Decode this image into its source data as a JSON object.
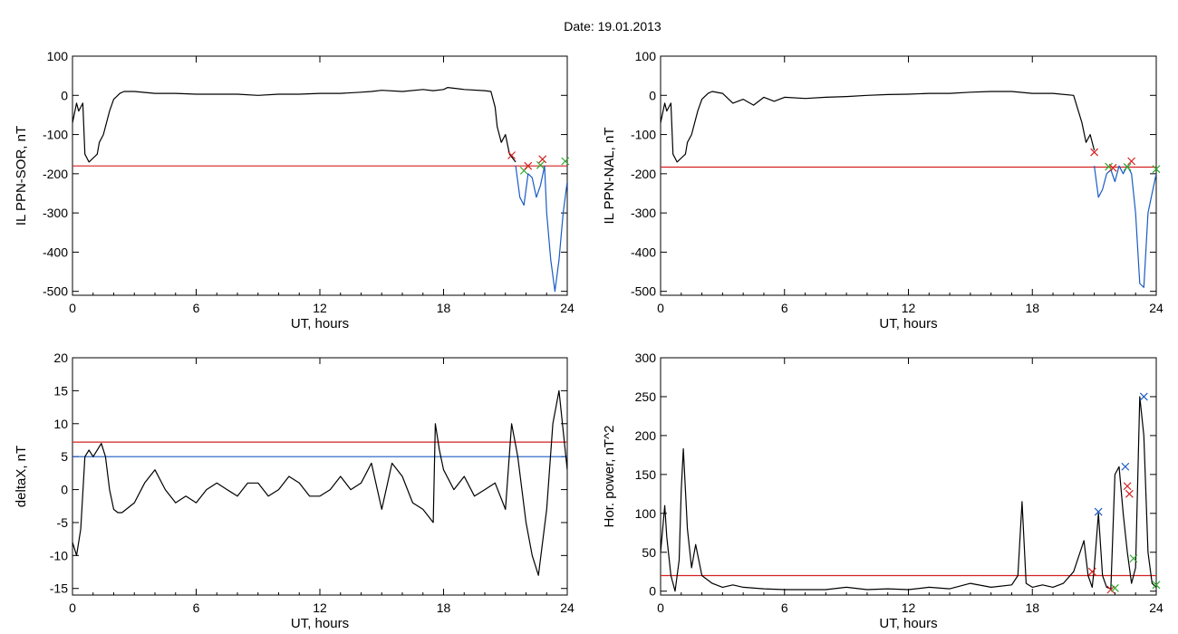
{
  "figure": {
    "title": "Date:  19.01.2013"
  },
  "chart_data": [
    {
      "type": "line",
      "xlabel": "UT, hours",
      "ylabel": "IL PPN-SOR, nT",
      "xlim": [
        0,
        24
      ],
      "ylim": [
        -510,
        100
      ],
      "xticks": [
        0,
        6,
        12,
        18,
        24
      ],
      "yticks": [
        100,
        0,
        -100,
        -200,
        -300,
        -400,
        -500
      ],
      "grid": false,
      "series": [
        {
          "color": "#000000",
          "x": [
            0,
            0.2,
            0.3,
            0.5,
            0.6,
            0.8,
            1.0,
            1.2,
            1.3,
            1.5,
            1.8,
            2.0,
            2.3,
            2.5,
            3.0,
            4.0,
            5.0,
            6.0,
            7.0,
            8.0,
            9.0,
            10.0,
            11.0,
            12.0,
            13.0,
            14.0,
            14.5,
            15.0,
            16.0,
            17.0,
            17.5,
            18.0,
            18.2,
            19.0,
            20.0,
            20.3,
            20.5,
            20.6,
            20.8,
            21.0,
            21.2,
            21.5
          ],
          "y": [
            -70,
            -20,
            -40,
            -20,
            -150,
            -170,
            -160,
            -150,
            -120,
            -100,
            -40,
            -10,
            5,
            10,
            10,
            5,
            5,
            3,
            3,
            3,
            0,
            3,
            3,
            5,
            5,
            8,
            10,
            13,
            10,
            15,
            12,
            15,
            20,
            15,
            12,
            10,
            -30,
            -80,
            -120,
            -100,
            -150,
            -170
          ]
        },
        {
          "color": "#1a5bc4",
          "x": [
            21.5,
            21.7,
            21.9,
            22.0,
            22.1,
            22.3,
            22.5,
            22.7,
            22.9,
            23.0,
            23.2,
            23.4,
            23.6,
            23.8,
            24.0
          ],
          "y": [
            -180,
            -260,
            -280,
            -240,
            -200,
            -210,
            -260,
            -230,
            -180,
            -300,
            -420,
            -500,
            -420,
            -300,
            -220
          ]
        }
      ],
      "hlines": [
        {
          "y": -180,
          "color": "#d42020"
        }
      ],
      "markers": [
        {
          "x": 21.3,
          "y": -153,
          "color": "#d42020"
        },
        {
          "x": 21.9,
          "y": -192,
          "color": "#2ea82e"
        },
        {
          "x": 22.1,
          "y": -180,
          "color": "#d42020"
        },
        {
          "x": 22.7,
          "y": -178,
          "color": "#2ea82e"
        },
        {
          "x": 22.8,
          "y": -163,
          "color": "#d42020"
        },
        {
          "x": 23.9,
          "y": -168,
          "color": "#2ea82e"
        }
      ]
    },
    {
      "type": "line",
      "xlabel": "UT, hours",
      "ylabel": "IL PPN-NAL, nT",
      "xlim": [
        0,
        24
      ],
      "ylim": [
        -510,
        100
      ],
      "xticks": [
        0,
        6,
        12,
        18,
        24
      ],
      "yticks": [
        100,
        0,
        -100,
        -200,
        -300,
        -400,
        -500
      ],
      "grid": false,
      "series": [
        {
          "color": "#000000",
          "x": [
            0,
            0.2,
            0.3,
            0.5,
            0.6,
            0.8,
            1.0,
            1.2,
            1.3,
            1.5,
            1.8,
            2.0,
            2.3,
            2.5,
            3.0,
            3.5,
            4.0,
            4.5,
            5.0,
            5.5,
            6.0,
            7.0,
            8.0,
            9.0,
            10.0,
            11.0,
            12.0,
            13.0,
            14.0,
            15.0,
            16.0,
            17.0,
            18.0,
            19.0,
            20.0,
            20.4,
            20.6,
            20.8,
            21.0
          ],
          "y": [
            -70,
            -20,
            -40,
            -20,
            -150,
            -170,
            -160,
            -150,
            -120,
            -100,
            -40,
            -10,
            5,
            10,
            5,
            -20,
            -10,
            -25,
            -5,
            -15,
            -5,
            -8,
            -5,
            -3,
            0,
            2,
            3,
            5,
            5,
            8,
            10,
            10,
            5,
            5,
            0,
            -70,
            -120,
            -100,
            -140
          ]
        },
        {
          "color": "#1a5bc4",
          "x": [
            21.0,
            21.2,
            21.4,
            21.6,
            21.8,
            22.0,
            22.2,
            22.4,
            22.6,
            22.8,
            23.0,
            23.2,
            23.4,
            23.6,
            23.8,
            24.0
          ],
          "y": [
            -180,
            -260,
            -240,
            -200,
            -190,
            -220,
            -180,
            -200,
            -180,
            -200,
            -300,
            -480,
            -490,
            -300,
            -250,
            -200
          ]
        }
      ],
      "hlines": [
        {
          "y": -183,
          "color": "#d42020"
        }
      ],
      "markers": [
        {
          "x": 21.0,
          "y": -145,
          "color": "#d42020"
        },
        {
          "x": 21.7,
          "y": -182,
          "color": "#2ea82e"
        },
        {
          "x": 21.9,
          "y": -185,
          "color": "#d42020"
        },
        {
          "x": 22.6,
          "y": -183,
          "color": "#2ea82e"
        },
        {
          "x": 22.8,
          "y": -168,
          "color": "#d42020"
        },
        {
          "x": 24.0,
          "y": -188,
          "color": "#2ea82e"
        }
      ]
    },
    {
      "type": "line",
      "xlabel": "UT, hours",
      "ylabel": "deltaX, nT",
      "xlim": [
        0,
        24
      ],
      "ylim": [
        -16,
        20
      ],
      "xticks": [
        0,
        6,
        12,
        18,
        24
      ],
      "yticks": [
        20,
        15,
        10,
        5,
        0,
        -5,
        -10,
        -15
      ],
      "grid": false,
      "series": [
        {
          "color": "#000000",
          "x": [
            0,
            0.2,
            0.4,
            0.6,
            0.8,
            1.0,
            1.2,
            1.4,
            1.6,
            1.8,
            2.0,
            2.2,
            2.4,
            2.6,
            3.0,
            3.5,
            4.0,
            4.5,
            5.0,
            5.5,
            6.0,
            6.5,
            7.0,
            7.5,
            8.0,
            8.5,
            9.0,
            9.5,
            10.0,
            10.5,
            11.0,
            11.5,
            12.0,
            12.5,
            13.0,
            13.5,
            14.0,
            14.5,
            15.0,
            15.5,
            16.0,
            16.5,
            17.0,
            17.5,
            17.6,
            17.8,
            18.0,
            18.5,
            19.0,
            19.5,
            20.0,
            20.5,
            21.0,
            21.3,
            21.6,
            22.0,
            22.3,
            22.6,
            23.0,
            23.3,
            23.6,
            24.0
          ],
          "y": [
            -8,
            -10,
            -6,
            5,
            6,
            5,
            6,
            7,
            5,
            0,
            -3,
            -3.5,
            -3.5,
            -3,
            -2,
            1,
            3,
            0,
            -2,
            -1,
            -2,
            0,
            1,
            0,
            -1,
            1,
            1,
            -1,
            0,
            2,
            1,
            -1,
            -1,
            0,
            2,
            0,
            1,
            4,
            -3,
            4,
            2,
            -2,
            -3,
            -5,
            10,
            6,
            3,
            0,
            2,
            -1,
            0,
            1,
            -3,
            10,
            5,
            -5,
            -10,
            -13,
            -3,
            10,
            15,
            3
          ]
        }
      ],
      "hlines": [
        {
          "y": 7.2,
          "color": "#d42020"
        },
        {
          "y": 5,
          "color": "#1a5bc4"
        }
      ],
      "markers": []
    },
    {
      "type": "line",
      "xlabel": "UT, hours",
      "ylabel": "Hor. power, nT^2",
      "xlim": [
        0,
        24
      ],
      "ylim": [
        -5,
        300
      ],
      "xticks": [
        0,
        6,
        12,
        18,
        24
      ],
      "yticks": [
        300,
        250,
        200,
        150,
        100,
        50,
        0
      ],
      "grid": false,
      "series": [
        {
          "color": "#000000",
          "x": [
            0,
            0.2,
            0.3,
            0.5,
            0.7,
            0.9,
            1.0,
            1.1,
            1.3,
            1.5,
            1.7,
            2.0,
            2.5,
            3.0,
            3.5,
            4.0,
            5.0,
            6.0,
            7.0,
            8.0,
            9.0,
            10.0,
            11.0,
            12.0,
            13.0,
            14.0,
            15.0,
            16.0,
            17.0,
            17.3,
            17.5,
            17.7,
            18.0,
            18.5,
            19.0,
            19.5,
            20.0,
            20.5,
            20.7,
            20.9,
            21.0,
            21.2,
            21.4,
            21.6,
            21.8,
            22.0,
            22.2,
            22.4,
            22.6,
            22.8,
            23.0,
            23.2,
            23.4,
            23.6,
            23.8,
            24.0
          ],
          "y": [
            50,
            110,
            70,
            20,
            0,
            40,
            130,
            183,
            80,
            30,
            60,
            20,
            10,
            5,
            8,
            5,
            3,
            2,
            2,
            2,
            5,
            2,
            3,
            2,
            5,
            3,
            10,
            5,
            8,
            20,
            115,
            10,
            5,
            8,
            5,
            10,
            25,
            65,
            20,
            5,
            30,
            100,
            20,
            5,
            3,
            150,
            160,
            100,
            50,
            10,
            30,
            250,
            200,
            50,
            10,
            5
          ]
        }
      ],
      "hlines": [
        {
          "y": 20,
          "color": "#d42020"
        }
      ],
      "markers": [
        {
          "x": 20.9,
          "y": 25,
          "color": "#d42020"
        },
        {
          "x": 21.2,
          "y": 102,
          "color": "#1a5bc4"
        },
        {
          "x": 21.8,
          "y": 2,
          "color": "#d42020"
        },
        {
          "x": 22.0,
          "y": 4,
          "color": "#2ea82e"
        },
        {
          "x": 22.5,
          "y": 160,
          "color": "#1a5bc4"
        },
        {
          "x": 22.6,
          "y": 135,
          "color": "#d42020"
        },
        {
          "x": 22.7,
          "y": 125,
          "color": "#d42020"
        },
        {
          "x": 22.9,
          "y": 42,
          "color": "#2ea82e"
        },
        {
          "x": 23.4,
          "y": 250,
          "color": "#1a5bc4"
        },
        {
          "x": 24.0,
          "y": 8,
          "color": "#2ea82e"
        }
      ]
    }
  ]
}
